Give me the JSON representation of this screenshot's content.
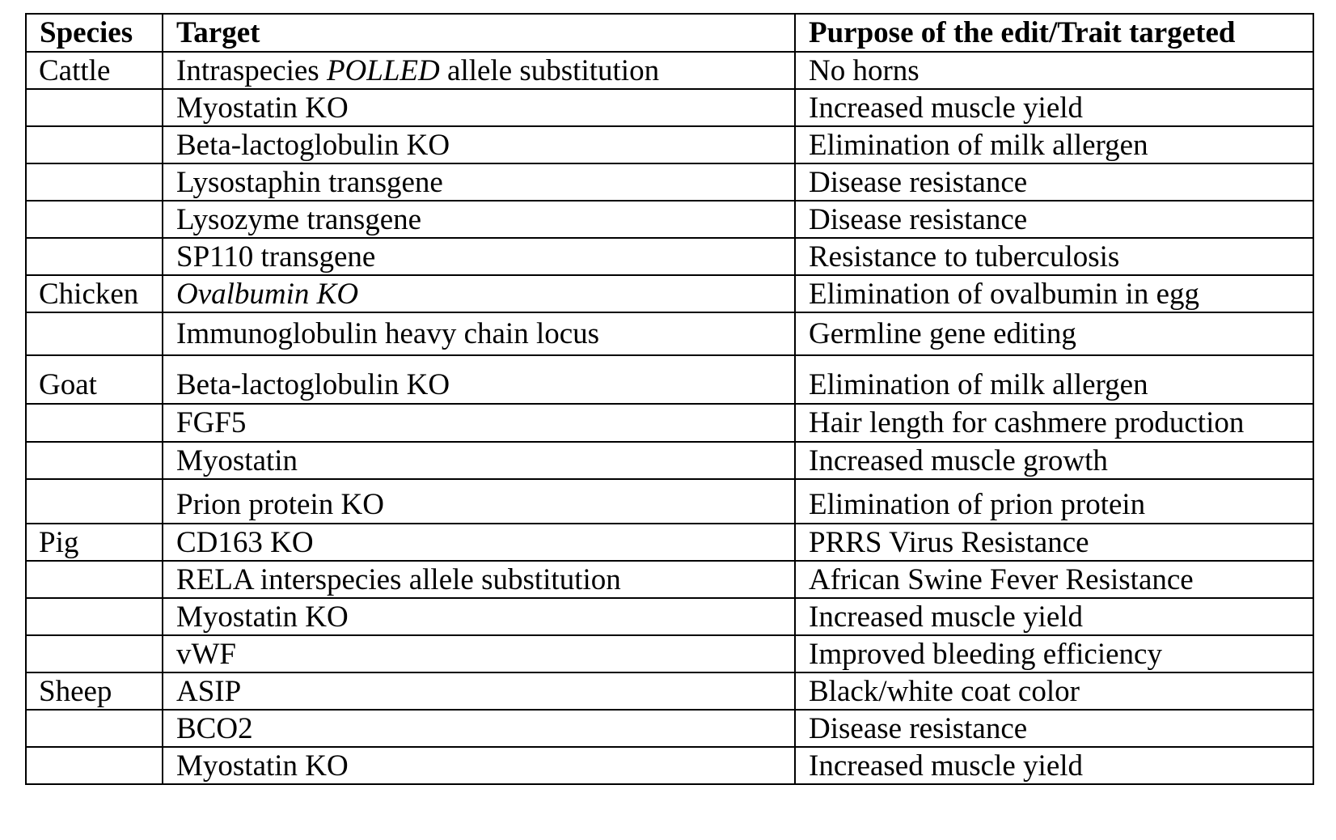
{
  "table": {
    "headers": {
      "species": "Species",
      "target": "Target",
      "purpose": "Purpose of the edit/Trait targeted"
    },
    "rows": [
      {
        "species": "Cattle",
        "target_pre": "Intraspecies ",
        "target_italic": "POLLED",
        "target_post": " allele substitution",
        "purpose": "No horns"
      },
      {
        "species": "",
        "target": "Myostatin KO",
        "purpose": "Increased muscle yield"
      },
      {
        "species": "",
        "target": "Beta-lactoglobulin KO",
        "purpose": "Elimination of milk allergen"
      },
      {
        "species": "",
        "target": "Lysostaphin transgene",
        "purpose": "Disease resistance"
      },
      {
        "species": "",
        "target": "Lysozyme transgene",
        "purpose": "Disease resistance"
      },
      {
        "species": "",
        "target": "SP110 transgene",
        "purpose": "Resistance to tuberculosis"
      },
      {
        "species": "Chicken",
        "target_italic_full": "Ovalbumin KO",
        "purpose": "Elimination of ovalbumin in egg"
      },
      {
        "species": "",
        "target": "Immunoglobulin heavy chain locus",
        "purpose": "Germline gene editing"
      },
      {
        "species": "Goat",
        "target": "Beta-lactoglobulin KO",
        "purpose": "Elimination of milk allergen"
      },
      {
        "species": "",
        "target": "FGF5",
        "purpose": "Hair length for cashmere production"
      },
      {
        "species": "",
        "target": "Myostatin",
        "purpose": "Increased muscle growth"
      },
      {
        "species": "",
        "target": "Prion protein KO",
        "purpose": "Elimination of prion protein"
      },
      {
        "species": "Pig",
        "target": "CD163 KO",
        "purpose": "PRRS Virus Resistance"
      },
      {
        "species": "",
        "target": "RELA interspecies allele substitution",
        "purpose": "African Swine Fever Resistance"
      },
      {
        "species": "",
        "target": "Myostatin KO",
        "purpose": "Increased muscle yield"
      },
      {
        "species": "",
        "target": "vWF",
        "purpose": "Improved bleeding efficiency"
      },
      {
        "species": "Sheep",
        "target": "ASIP",
        "purpose": "Black/white coat color"
      },
      {
        "species": "",
        "target": "BCO2",
        "purpose": "Disease resistance"
      },
      {
        "species": "",
        "target": "Myostatin KO",
        "purpose": "Increased muscle yield"
      }
    ]
  }
}
